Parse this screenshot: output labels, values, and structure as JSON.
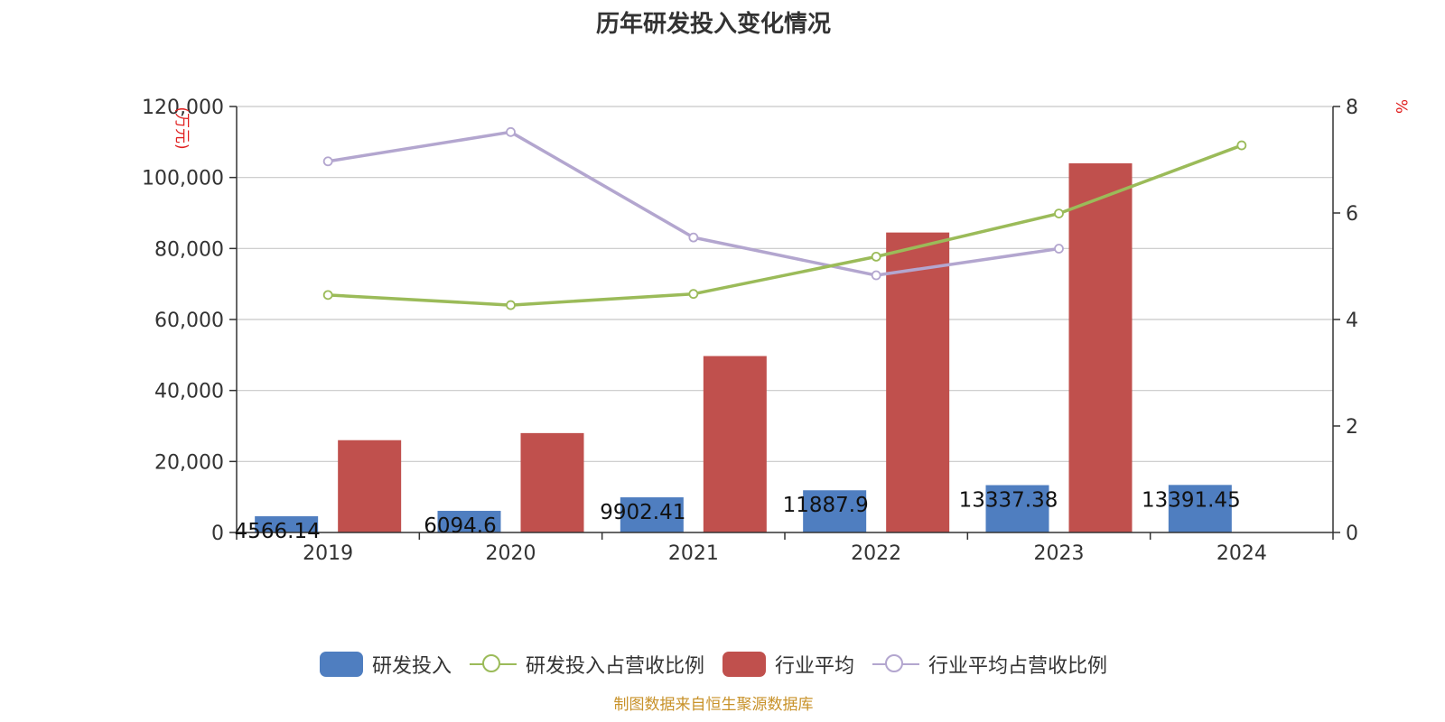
{
  "title": "历年研发投入变化情况",
  "source": "制图数据来自恒生聚源数据库",
  "colors": {
    "rd_bar": "#4f7ec0",
    "industry_bar": "#c0504d",
    "rd_ratio_line": "#9bbb59",
    "industry_ratio_line": "#b3a6cf",
    "unit_label": "#e02020",
    "axis": "#333333",
    "grid": "#c8c8c8"
  },
  "chart_data": {
    "type": "bar",
    "title": "历年研发投入变化情况",
    "categories": [
      "2019",
      "2020",
      "2021",
      "2022",
      "2023",
      "2024"
    ],
    "y_left": {
      "label": "(万元)",
      "min": 0,
      "max": 120000,
      "ticks": [
        "0",
        "20,000",
        "40,000",
        "60,000",
        "80,000",
        "100,000",
        "120,000"
      ]
    },
    "y_right": {
      "label": "%",
      "min": 0,
      "max": 8,
      "ticks": [
        "0",
        "2",
        "4",
        "6",
        "8"
      ]
    },
    "grid": true,
    "legend_position": "bottom",
    "series": [
      {
        "name": "研发投入",
        "kind": "bar",
        "axis": "left",
        "values": [
          4566.14,
          6094.6,
          9902.41,
          11887.9,
          13337.38,
          13391.45
        ],
        "labels": [
          "4566.14",
          "6094.6",
          "9902.41",
          "11887.9",
          "13337.38",
          "13391.45"
        ]
      },
      {
        "name": "行业平均",
        "kind": "bar",
        "axis": "left",
        "values": [
          26000,
          28000,
          49700,
          84500,
          104000,
          null
        ]
      },
      {
        "name": "研发投入占营收比例",
        "kind": "line",
        "axis": "right",
        "values": [
          4.46,
          4.27,
          4.48,
          5.18,
          5.99,
          7.27
        ]
      },
      {
        "name": "行业平均占营收比例",
        "kind": "line",
        "axis": "right",
        "values": [
          6.97,
          7.52,
          5.54,
          4.83,
          5.33,
          null
        ]
      }
    ]
  }
}
